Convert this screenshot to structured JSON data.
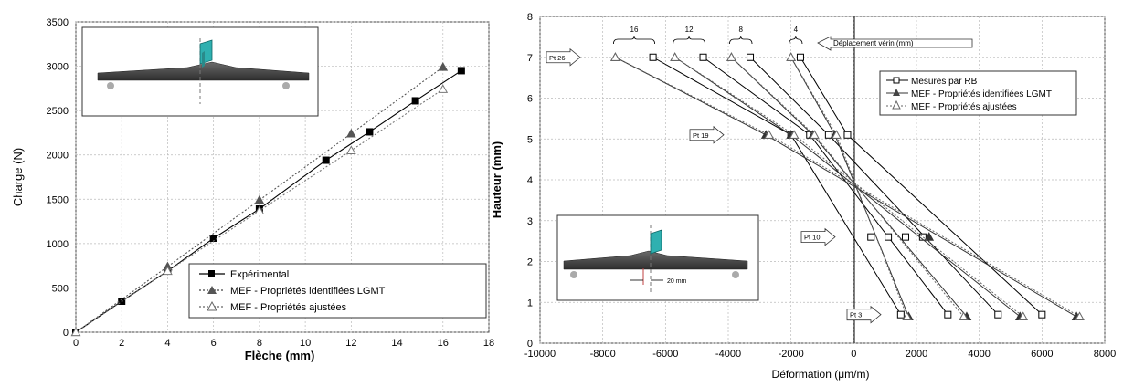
{
  "chart_data": [
    {
      "type": "line",
      "xlabel": "Flèche (mm)",
      "ylabel": "Charge (N)",
      "xlim": [
        0,
        18
      ],
      "ylim": [
        0,
        3500
      ],
      "xticks": [
        0,
        2,
        4,
        6,
        8,
        10,
        12,
        14,
        16,
        18
      ],
      "yticks": [
        0,
        500,
        1000,
        1500,
        2000,
        2500,
        3000,
        3500
      ],
      "grid": true,
      "legend_position": "bottom-right",
      "series": [
        {
          "name": "Expérimental",
          "style": "solid-square",
          "color": "#000000",
          "points": [
            [
              0,
              0
            ],
            [
              2,
              350
            ],
            [
              4,
              690
            ],
            [
              6,
              1060
            ],
            [
              8,
              1390
            ],
            [
              10.9,
              1940
            ],
            [
              12.8,
              2260
            ],
            [
              14.8,
              2610
            ],
            [
              16.8,
              2950
            ]
          ]
        },
        {
          "name": "MEF - Propriétés identifiées LGMT",
          "style": "dotted-filled-triangle",
          "color": "#555555",
          "points": [
            [
              0,
              0
            ],
            [
              4,
              740
            ],
            [
              8,
              1490
            ],
            [
              12,
              2240
            ],
            [
              16,
              2990
            ]
          ]
        },
        {
          "name": "MEF - Propriétés ajustées",
          "style": "dotted-open-triangle",
          "color": "#777777",
          "points": [
            [
              0,
              0
            ],
            [
              4,
              690
            ],
            [
              8,
              1370
            ],
            [
              12,
              2050
            ],
            [
              16,
              2740
            ]
          ]
        }
      ]
    },
    {
      "type": "line",
      "xlabel": "Déformation (μm/m)",
      "ylabel": "Hauteur (mm)",
      "xlim": [
        -10000,
        8000
      ],
      "ylim": [
        0,
        8
      ],
      "xticks": [
        -10000,
        -8000,
        -6000,
        -4000,
        -2000,
        0,
        2000,
        4000,
        6000,
        8000
      ],
      "yticks": [
        0,
        1,
        2,
        3,
        4,
        5,
        6,
        7,
        8
      ],
      "grid": true,
      "legend_position": "top-right",
      "pivot": [
        0,
        3.8
      ],
      "displacement_label": "Déplacement vérin (mm)",
      "displacements": [
        "16",
        "12",
        "8",
        "4"
      ],
      "position_labels": [
        "Pt 26",
        "Pt 19",
        "Pt 10",
        "Pt 3"
      ],
      "position_heights": [
        7,
        5.1,
        2.6,
        0.7
      ],
      "inset_annotation": "20 mm",
      "series": [
        {
          "name": "Mesures par RB",
          "style": "solid-open-square",
          "color": "#000000",
          "lines": [
            [
              [
                -6400,
                7
              ],
              [
                -2000,
                5.1
              ],
              [
                1500,
                0.7
              ]
            ],
            [
              [
                -4800,
                7
              ],
              [
                -1400,
                5.1
              ],
              [
                3000,
                0.7
              ]
            ],
            [
              [
                -3300,
                7
              ],
              [
                -800,
                5.1
              ],
              [
                4600,
                0.7
              ]
            ],
            [
              [
                -1700,
                7
              ],
              [
                -200,
                5.1
              ],
              [
                6000,
                0.7
              ]
            ]
          ],
          "extra_points": [
            [
              550,
              2.6
            ],
            [
              1100,
              2.6
            ],
            [
              1650,
              2.6
            ],
            [
              2200,
              2.6
            ]
          ]
        },
        {
          "name": "MEF - Propriétés identifiées LGMT",
          "style": "solid-filled-triangle",
          "color": "#333333",
          "lines": [
            [
              [
                -7600,
                7
              ],
              [
                -2800,
                5.1
              ],
              [
                7100,
                0.65
              ]
            ],
            [
              [
                -5700,
                7
              ],
              [
                -2000,
                5.1
              ],
              [
                5300,
                0.65
              ]
            ],
            [
              [
                -3900,
                7
              ],
              [
                -1300,
                5.1
              ],
              [
                3600,
                0.65
              ]
            ],
            [
              [
                -2000,
                7
              ],
              [
                -600,
                5.1
              ],
              [
                1750,
                0.65
              ]
            ]
          ],
          "extra_points": [
            [
              2400,
              2.6
            ]
          ]
        },
        {
          "name": "MEF - Propriétés ajustées",
          "style": "dotted-open-triangle",
          "color": "#666666",
          "lines": [
            [
              [
                -7600,
                7
              ],
              [
                -2700,
                5.1
              ],
              [
                7200,
                0.65
              ]
            ],
            [
              [
                -5700,
                7
              ],
              [
                -1900,
                5.1
              ],
              [
                5400,
                0.65
              ]
            ],
            [
              [
                -3900,
                7
              ],
              [
                -1250,
                5.1
              ],
              [
                3500,
                0.65
              ]
            ],
            [
              [
                -2000,
                7
              ],
              [
                -550,
                5.1
              ],
              [
                1700,
                0.65
              ]
            ]
          ],
          "extra_points": []
        }
      ]
    }
  ]
}
